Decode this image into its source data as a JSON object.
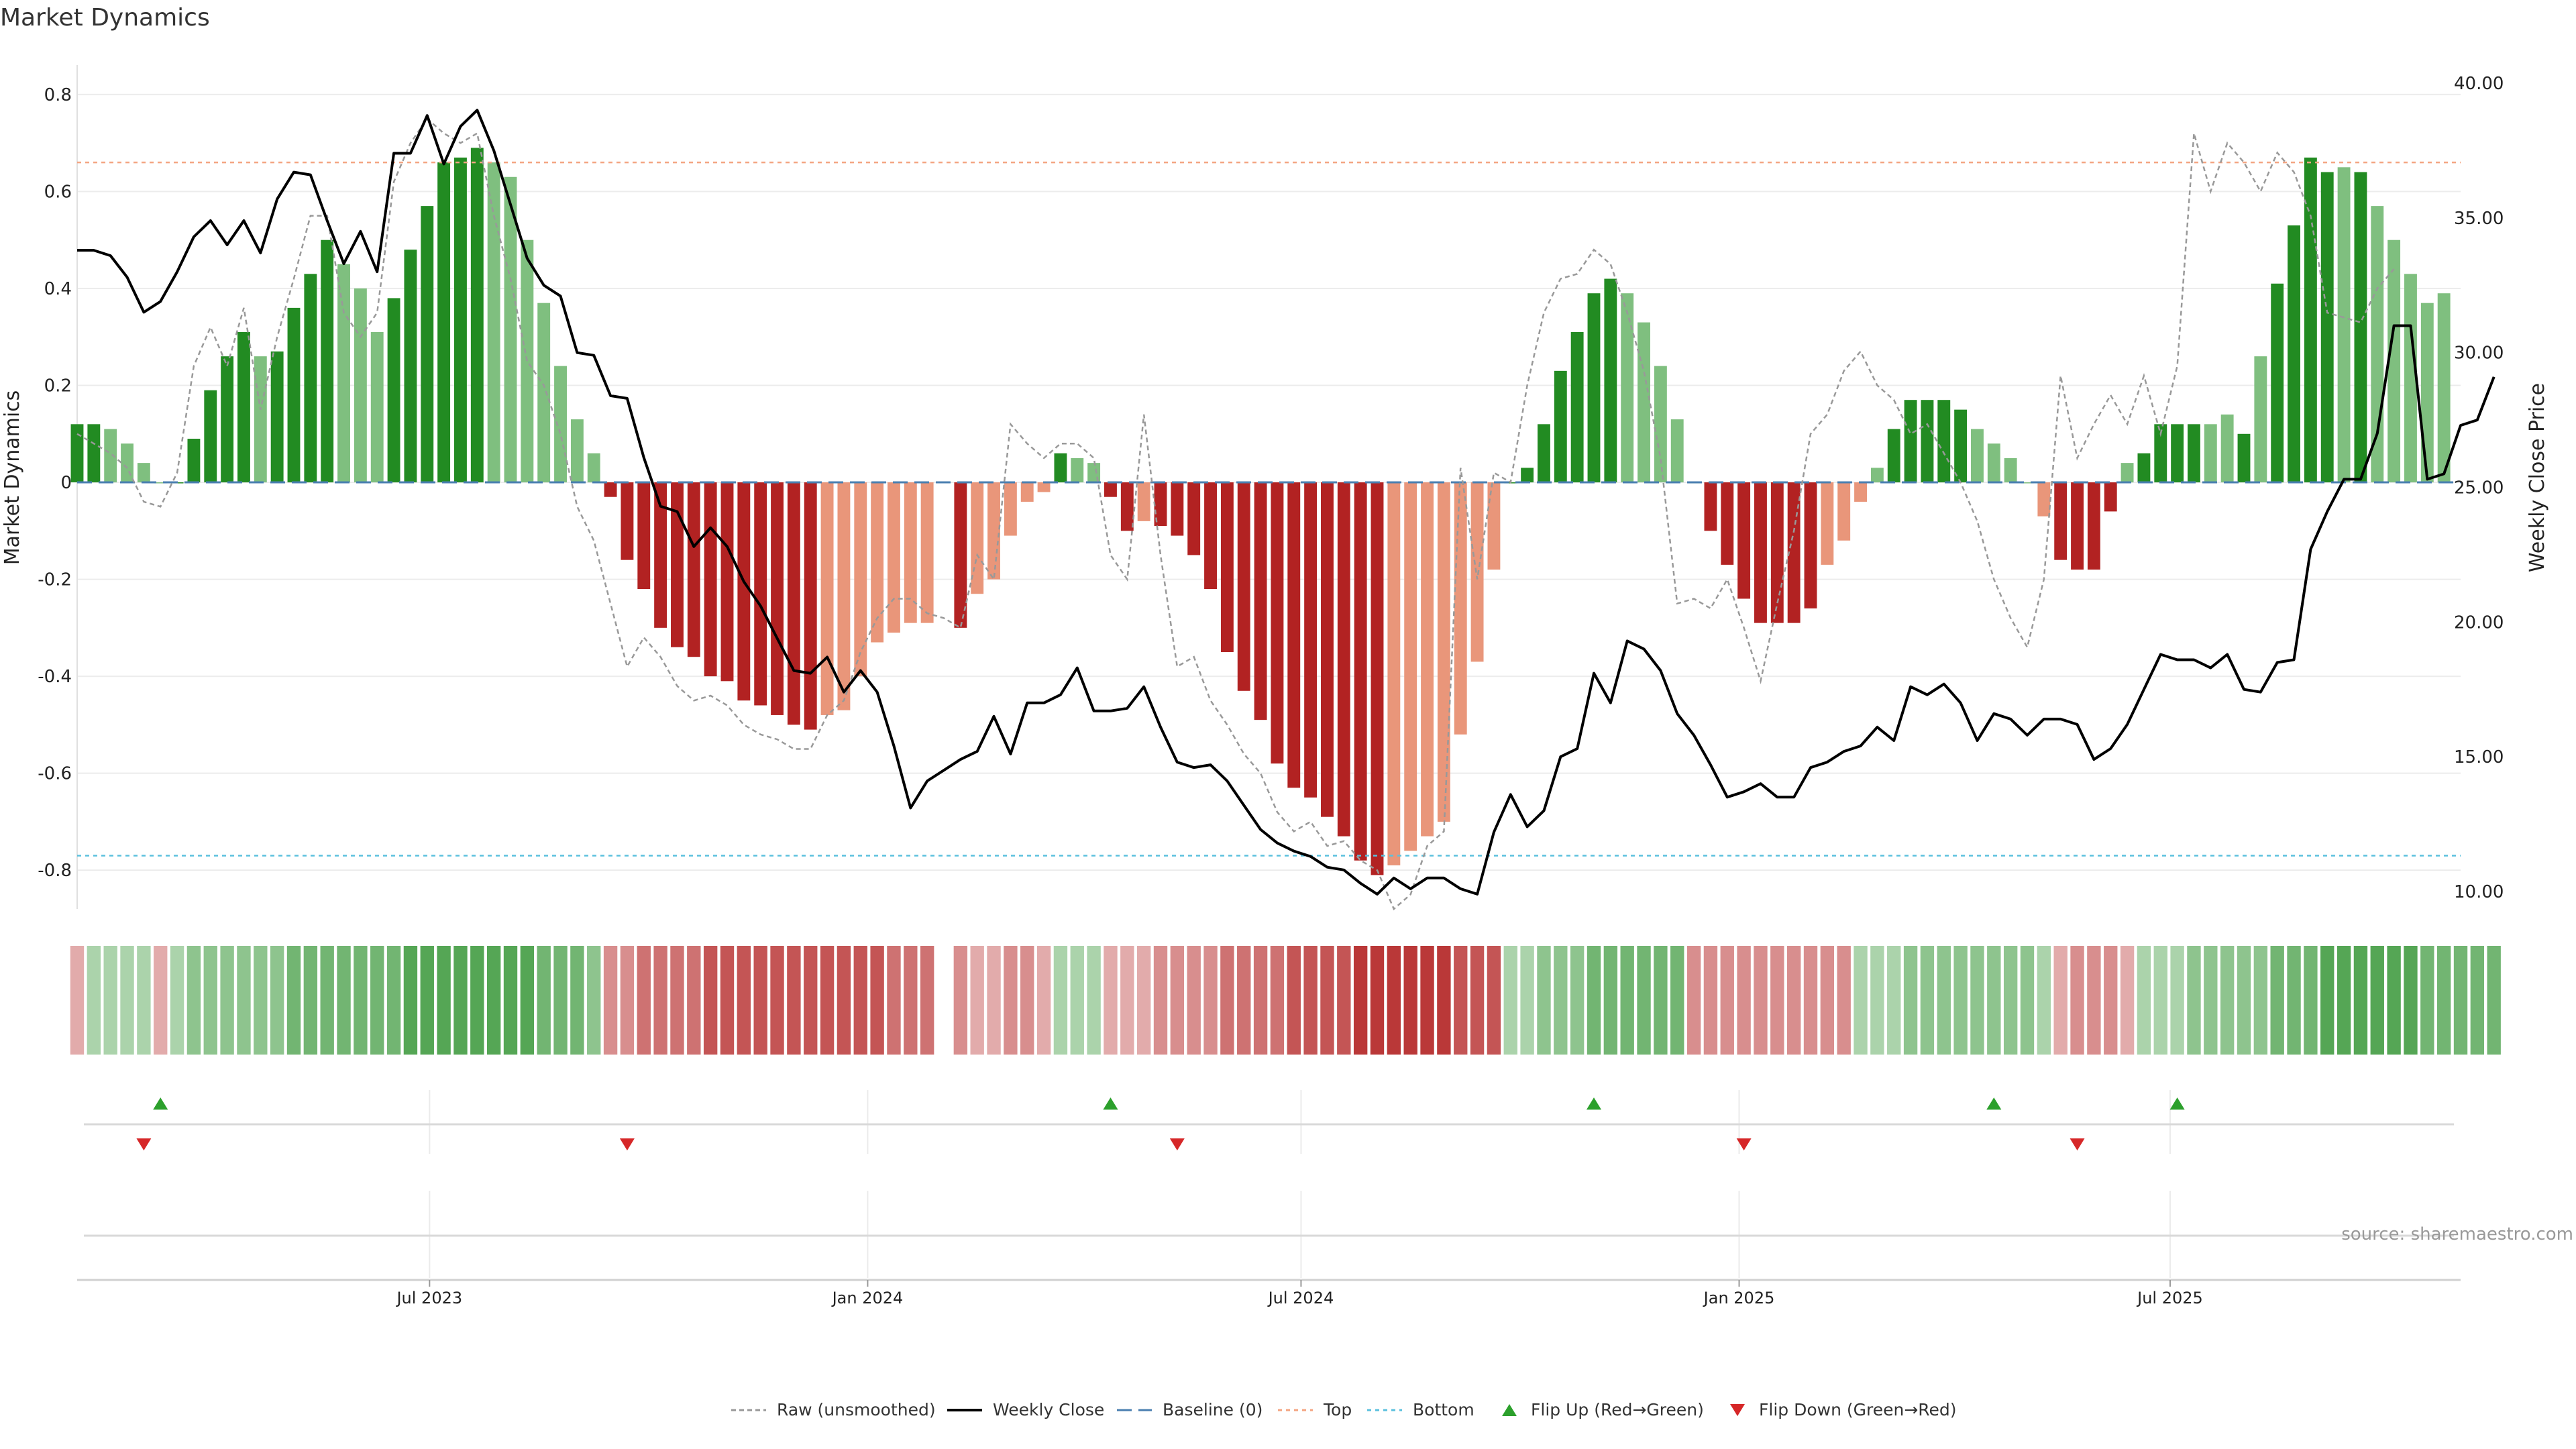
{
  "title": "Market Dynamics",
  "source": "source: sharemaestro.com",
  "colors": {
    "strong_green": "#228b22",
    "light_green": "#7fbf7f",
    "strong_red": "#b22222",
    "light_red": "#e9967a",
    "close_line": "#000000",
    "raw_line": "#999999",
    "baseline": "#4a7fb0",
    "top_line": "#f4a582",
    "bottom_line": "#5bc0de",
    "flip_up": "#2ca02c",
    "flip_down": "#d62728"
  },
  "chart_data": {
    "type": "bar+line",
    "left_axis": {
      "label": "Market Dynamics",
      "ylim": [
        -0.88,
        0.84
      ],
      "ticks": [
        0.8,
        0.6,
        0.4,
        0.2,
        0,
        -0.2,
        -0.4,
        -0.6,
        -0.8
      ],
      "tick_labels": [
        "0.8",
        "0.6",
        "0.4",
        "0.2",
        "0",
        "-0.2",
        "-0.4",
        "-0.6",
        "-0.8"
      ]
    },
    "right_axis": {
      "label": "Weekly Close Price",
      "ylim": [
        9.35,
        40.3
      ],
      "ticks": [
        40,
        35,
        30,
        25,
        20,
        15,
        10
      ],
      "tick_labels": [
        "40.00",
        "35.00",
        "30.00",
        "25.00",
        "20.00",
        "15.00",
        "10.00"
      ]
    },
    "x_axis": {
      "range": [
        "2023-02-03",
        "2025-10-31"
      ],
      "ticks": [
        {
          "date": "2023-07-01",
          "label": "Jul 2023"
        },
        {
          "date": "2024-01-01",
          "label": "Jan 2024"
        },
        {
          "date": "2024-07-01",
          "label": "Jul 2024"
        },
        {
          "date": "2025-01-01",
          "label": "Jan 2025"
        },
        {
          "date": "2025-07-01",
          "label": "Jul 2025"
        }
      ]
    },
    "start_date": "2023-02-03",
    "interval_days": 7,
    "top_level": 0.66,
    "bottom_level": -0.77,
    "baseline": 0,
    "dynamics": [
      0.12,
      0.12,
      0.11,
      0.08,
      0.04,
      0,
      0,
      0.09,
      0.19,
      0.26,
      0.31,
      0.26,
      0.27,
      0.36,
      0.43,
      0.5,
      0.45,
      0.4,
      0.31,
      0.38,
      0.48,
      0.57,
      0.66,
      0.67,
      0.69,
      0.66,
      0.63,
      0.5,
      0.37,
      0.24,
      0.13,
      0.06,
      -0.03,
      -0.16,
      -0.22,
      -0.3,
      -0.34,
      -0.36,
      -0.4,
      -0.41,
      -0.45,
      -0.46,
      -0.48,
      -0.5,
      -0.51,
      -0.48,
      -0.47,
      -0.4,
      -0.33,
      -0.31,
      -0.29,
      -0.29,
      null,
      -0.3,
      -0.23,
      -0.2,
      -0.11,
      -0.04,
      -0.02,
      0.06,
      0.05,
      0.04,
      -0.03,
      -0.1,
      -0.08,
      -0.09,
      -0.11,
      -0.15,
      -0.22,
      -0.35,
      -0.43,
      -0.49,
      -0.58,
      -0.63,
      -0.65,
      -0.69,
      -0.73,
      -0.78,
      -0.81,
      -0.79,
      -0.76,
      -0.73,
      -0.7,
      -0.52,
      -0.37,
      -0.18,
      0,
      0.03,
      0.12,
      0.23,
      0.31,
      0.39,
      0.42,
      0.39,
      0.33,
      0.24,
      0.13,
      0,
      -0.1,
      -0.17,
      -0.24,
      -0.29,
      -0.29,
      -0.29,
      -0.26,
      -0.17,
      -0.12,
      -0.04,
      0.03,
      0.11,
      0.17,
      0.17,
      0.17,
      0.15,
      0.11,
      0.08,
      0.05,
      0,
      -0.07,
      -0.16,
      -0.18,
      -0.18,
      -0.06,
      0.04,
      0.06,
      0.12,
      0.12,
      0.12,
      0.12,
      0.14,
      0.1,
      0.26,
      0.41,
      0.53,
      0.67,
      0.64,
      0.65,
      0.64,
      0.57,
      0.5,
      0.43,
      0.37,
      0.39
    ],
    "bar_shade": [
      "strong",
      "strong",
      "light",
      "light",
      "light",
      "light",
      "strong",
      "strong",
      "strong",
      "strong",
      "strong",
      "light",
      "strong",
      "strong",
      "strong",
      "strong",
      "light",
      "light",
      "light",
      "strong",
      "strong",
      "strong",
      "strong",
      "strong",
      "strong",
      "light",
      "light",
      "light",
      "light",
      "light",
      "light",
      "light",
      "strong",
      "strong",
      "strong",
      "strong",
      "strong",
      "strong",
      "strong",
      "strong",
      "strong",
      "strong",
      "strong",
      "strong",
      "strong",
      "light",
      "light",
      "light",
      "light",
      "light",
      "light",
      "light",
      "none",
      "strong",
      "light",
      "light",
      "light",
      "light",
      "light",
      "strong",
      "light",
      "light",
      "strong",
      "strong",
      "light",
      "strong",
      "strong",
      "strong",
      "strong",
      "strong",
      "strong",
      "strong",
      "strong",
      "strong",
      "strong",
      "strong",
      "strong",
      "strong",
      "strong",
      "light",
      "light",
      "light",
      "light",
      "light",
      "light",
      "light",
      "strong",
      "strong",
      "strong",
      "strong",
      "strong",
      "strong",
      "strong",
      "light",
      "light",
      "light",
      "light",
      "light",
      "strong",
      "strong",
      "strong",
      "strong",
      "strong",
      "strong",
      "strong",
      "light",
      "light",
      "light",
      "light",
      "strong",
      "strong",
      "strong",
      "strong",
      "strong",
      "light",
      "light",
      "light",
      "light",
      "light",
      "strong",
      "strong",
      "strong",
      "strong",
      "light",
      "strong",
      "strong",
      "strong",
      "strong",
      "light",
      "light",
      "strong",
      "light",
      "strong",
      "strong",
      "strong",
      "strong",
      "light",
      "strong",
      "light",
      "light",
      "light",
      "light",
      "light",
      "strong"
    ],
    "raw": [
      0.1,
      0.08,
      0.06,
      0.03,
      -0.04,
      -0.05,
      0.02,
      0.24,
      0.32,
      0.24,
      0.36,
      0.15,
      0.3,
      0.42,
      0.55,
      0.55,
      0.35,
      0.3,
      0.35,
      0.62,
      0.7,
      0.75,
      0.72,
      0.7,
      0.72,
      0.55,
      0.42,
      0.25,
      0.2,
      0.1,
      -0.05,
      -0.12,
      -0.25,
      -0.38,
      -0.32,
      -0.36,
      -0.42,
      -0.45,
      -0.44,
      -0.46,
      -0.5,
      -0.52,
      -0.53,
      -0.55,
      -0.55,
      -0.48,
      -0.45,
      -0.35,
      -0.28,
      -0.24,
      -0.24,
      -0.27,
      -0.28,
      -0.3,
      -0.15,
      -0.2,
      0.12,
      0.08,
      0.05,
      0.08,
      0.08,
      0.05,
      -0.15,
      -0.2,
      0.14,
      -0.15,
      -0.38,
      -0.36,
      -0.45,
      -0.5,
      -0.56,
      -0.6,
      -0.68,
      -0.72,
      -0.7,
      -0.75,
      -0.74,
      -0.78,
      -0.8,
      -0.88,
      -0.85,
      -0.75,
      -0.72,
      0.03,
      -0.2,
      0.02,
      0,
      0.2,
      0.35,
      0.42,
      0.43,
      0.48,
      0.45,
      0.35,
      0.23,
      0.05,
      -0.25,
      -0.24,
      -0.26,
      -0.2,
      -0.3,
      -0.41,
      -0.25,
      -0.1,
      0.1,
      0.14,
      0.23,
      0.27,
      0.2,
      0.17,
      0.1,
      0.12,
      0.06,
      0,
      -0.08,
      -0.2,
      -0.28,
      -0.34,
      -0.2,
      0.22,
      0.05,
      0.12,
      0.18,
      0.12,
      0.22,
      0.1,
      0.24,
      0.72,
      0.6,
      0.7,
      0.66,
      0.6,
      0.68,
      0.64,
      0.55,
      0.35,
      0.34,
      0.33,
      0.4,
      0.44
    ],
    "weekly_close": [
      33.8,
      33.8,
      33.6,
      32.8,
      31.5,
      31.9,
      33,
      34.3,
      34.9,
      34,
      34.9,
      33.7,
      35.7,
      36.7,
      36.6,
      34.9,
      33.3,
      34.5,
      33,
      37.4,
      37.4,
      38.8,
      37,
      38.4,
      39,
      37.5,
      35.5,
      33.5,
      32.5,
      32.1,
      30,
      29.9,
      28.4,
      28.3,
      26.1,
      24.3,
      24.1,
      22.8,
      23.5,
      22.8,
      21.5,
      20.6,
      19.4,
      18.2,
      18.1,
      18.7,
      17.4,
      18.2,
      17.4,
      15.4,
      13.1,
      14.1,
      14.5,
      14.9,
      15.2,
      16.5,
      15.1,
      17,
      17,
      17.3,
      18.3,
      16.7,
      16.7,
      16.8,
      17.6,
      16.1,
      14.8,
      14.6,
      14.7,
      14.1,
      13.2,
      12.3,
      11.8,
      11.5,
      11.3,
      10.9,
      10.8,
      10.3,
      9.9,
      10.5,
      10.1,
      10.5,
      10.5,
      10.1,
      9.9,
      12.2,
      13.6,
      12.4,
      13,
      15,
      15.3,
      18.1,
      17,
      19.3,
      19,
      18.2,
      16.6,
      15.8,
      14.7,
      13.5,
      13.7,
      14,
      13.5,
      13.5,
      14.6,
      14.8,
      15.2,
      15.4,
      16.1,
      15.6,
      17.6,
      17.3,
      17.7,
      17,
      15.6,
      16.6,
      16.4,
      15.8,
      16.4,
      16.4,
      16.2,
      14.9,
      15.3,
      16.2,
      17.5,
      18.8,
      18.6,
      18.6,
      18.3,
      18.8,
      17.5,
      17.4,
      18.5,
      18.6,
      22.7,
      24.1,
      25.3,
      25.3,
      27,
      31,
      31,
      25.3,
      25.5,
      27.3,
      27.5,
      29.1
    ],
    "heat_strip": [
      -2,
      2,
      2,
      2,
      2,
      -2,
      2,
      3,
      3,
      3,
      3,
      3,
      3,
      4,
      4,
      4,
      4,
      4,
      4,
      4,
      5,
      5,
      5,
      5,
      5,
      5,
      5,
      5,
      4,
      4,
      4,
      3,
      -3,
      -3,
      -4,
      -4,
      -4,
      -4,
      -5,
      -5,
      -5,
      -5,
      -5,
      -5,
      -5,
      -5,
      -5,
      -5,
      -5,
      -4,
      -4,
      -4,
      0,
      -3,
      -2,
      -2,
      -3,
      -3,
      -2,
      2,
      2,
      2,
      -2,
      -2,
      -2,
      -3,
      -3,
      -3,
      -3,
      -4,
      -4,
      -4,
      -4,
      -5,
      -5,
      -5,
      -5,
      -6,
      -6,
      -6,
      -6,
      -6,
      -6,
      -5,
      -5,
      -5,
      2,
      2,
      3,
      3,
      3,
      4,
      4,
      4,
      4,
      4,
      4,
      -3,
      -3,
      -3,
      -3,
      -3,
      -3,
      -3,
      -3,
      -3,
      -3,
      2,
      2,
      2,
      3,
      3,
      3,
      3,
      3,
      3,
      3,
      3,
      2,
      -2,
      -3,
      -3,
      -3,
      -2,
      2,
      2,
      2,
      3,
      3,
      3,
      3,
      3,
      4,
      4,
      4,
      5,
      5,
      5,
      5,
      5,
      5,
      4,
      4,
      4,
      4,
      4
    ],
    "flip_up": [
      "2023-03-10",
      "2024-04-12",
      "2024-11-01",
      "2025-04-18",
      "2025-07-04"
    ],
    "flip_down": [
      "2023-03-03",
      "2023-09-22",
      "2024-05-10",
      "2025-01-03",
      "2025-05-23"
    ],
    "legend": [
      "Raw (unsmoothed)",
      "Weekly Close",
      "Baseline (0)",
      "Top",
      "Bottom",
      "Flip Up (Red→Green)",
      "Flip Down (Green→Red)"
    ]
  }
}
